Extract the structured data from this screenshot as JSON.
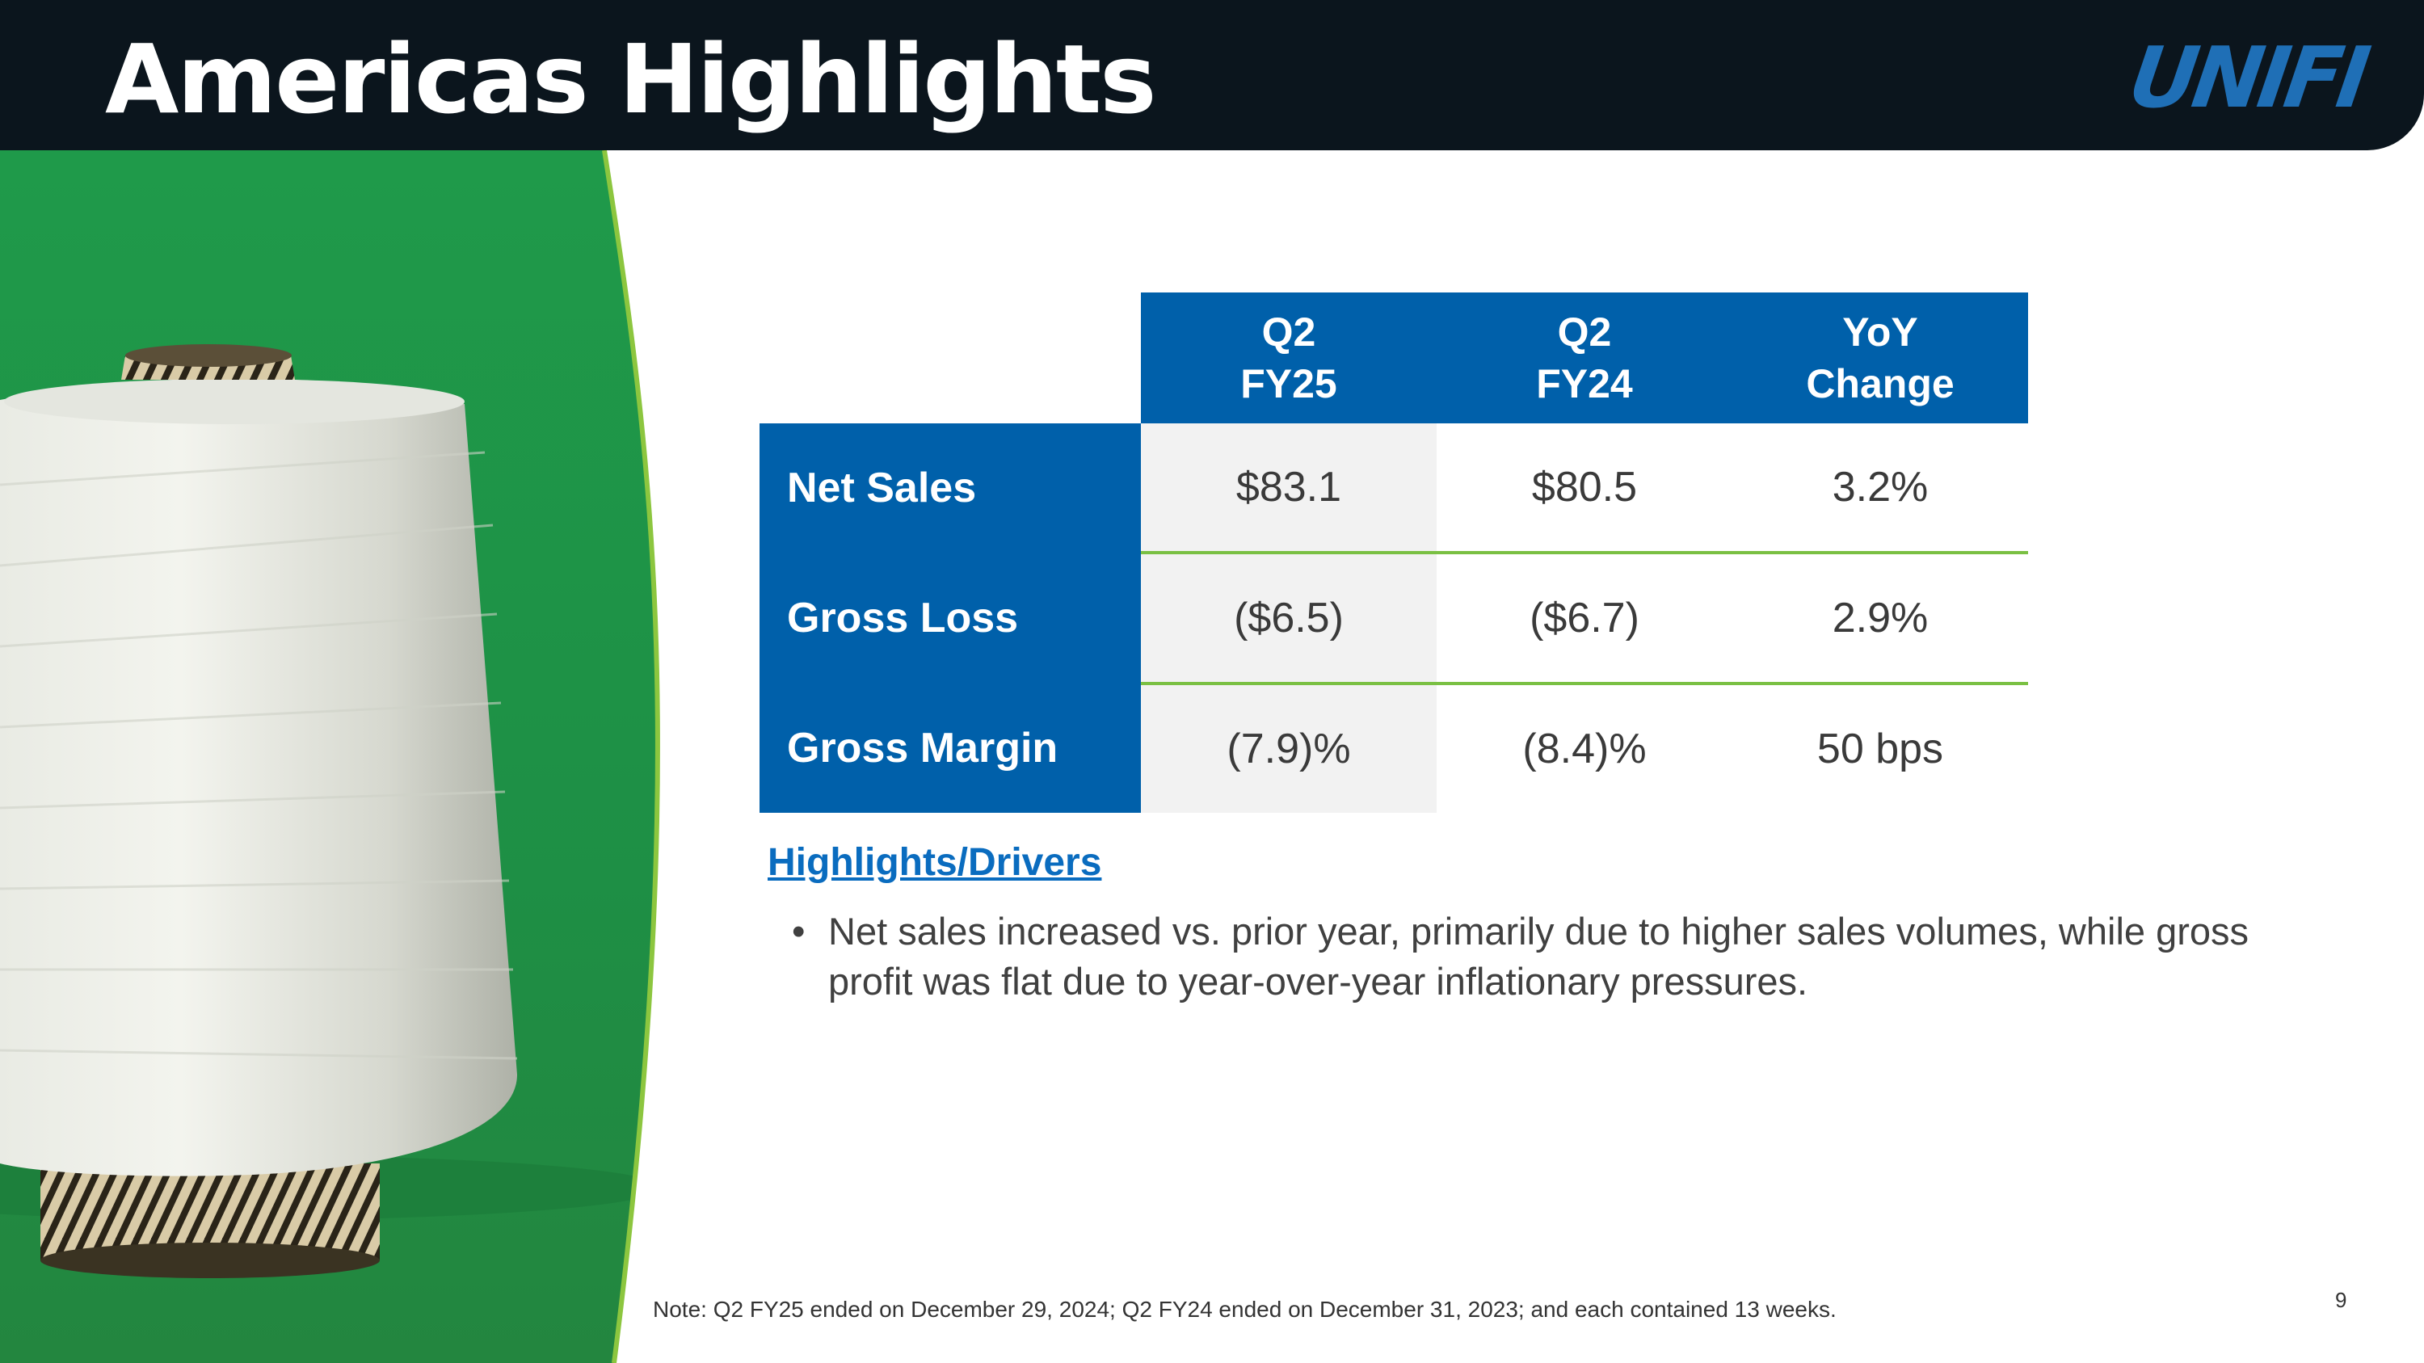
{
  "header": {
    "title": "Americas Highlights",
    "logo_text": "UNIFI",
    "background": "#0b151d",
    "logo_color": "#1f6fb6"
  },
  "table": {
    "columns": [
      {
        "line1": "Q2",
        "line2": "FY25"
      },
      {
        "line1": "Q2",
        "line2": "FY24"
      },
      {
        "line1": "YoY",
        "line2": "Change"
      }
    ],
    "rows": [
      {
        "label": "Net Sales",
        "values": [
          "$83.1",
          "$80.5",
          "3.2%"
        ]
      },
      {
        "label": "Gross Loss",
        "values": [
          "($6.5)",
          "($6.7)",
          "2.9%"
        ]
      },
      {
        "label": "Gross Margin",
        "values": [
          "(7.9)%",
          "(8.4)%",
          "50 bps"
        ]
      }
    ],
    "header_color": "#0060aa",
    "separator_color": "#7ac043"
  },
  "highlights": {
    "heading": "Highlights/Drivers",
    "bullets": [
      "Net sales increased vs. prior year, primarily due to higher sales volumes, while gross profit was flat due to year-over-year inflationary pressures."
    ]
  },
  "footer": {
    "note": "Note: Q2 FY25 ended on December 29, 2024; Q2 FY24 ended on December 31, 2023; and each contained 13 weeks.",
    "page_number": "9"
  },
  "image": {
    "icons": [
      "yarn-cone-image"
    ],
    "background_color": "#24924a",
    "border_color": "#8cc63f"
  }
}
